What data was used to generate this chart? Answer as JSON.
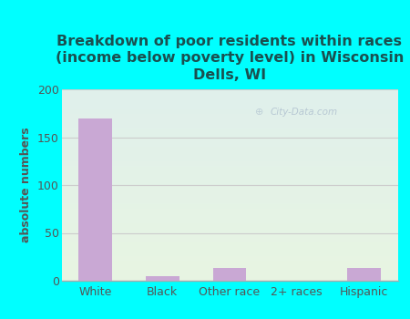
{
  "title": "Breakdown of poor residents within races\n(income below poverty level) in Wisconsin\nDells, WI",
  "categories": [
    "White",
    "Black",
    "Other race",
    "2+ races",
    "Hispanic"
  ],
  "values": [
    170,
    5,
    13,
    0,
    13
  ],
  "bar_color": "#c9a8d4",
  "ylabel": "absolute numbers",
  "ylim": [
    0,
    200
  ],
  "yticks": [
    0,
    50,
    100,
    150,
    200
  ],
  "background_color": "#00ffff",
  "plot_bg_color_top": "#e0f0ec",
  "plot_bg_color_bottom": "#e8f5e2",
  "watermark": "City-Data.com",
  "title_fontsize": 11.5,
  "ylabel_fontsize": 9,
  "tick_fontsize": 9,
  "title_color": "#1a5050",
  "ylabel_color": "#555555",
  "tick_color": "#555555",
  "grid_color": "#cccccc"
}
